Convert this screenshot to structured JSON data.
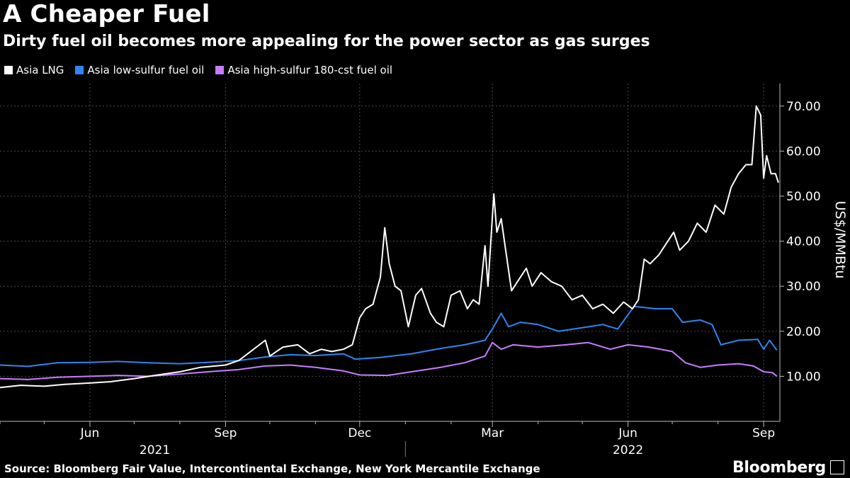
{
  "title": "A Cheaper Fuel",
  "subtitle": "Dirty fuel oil becomes more appealing for the power sector as gas surges",
  "source": "Source: Bloomberg Fair Value, Intercontinental Exchange, New York Mercantile Exchange",
  "brand": "Bloomberg",
  "colors": {
    "lng": "#ffffff",
    "lsfo": "#2e86f0",
    "hsfo": "#c77dff",
    "background": "#000000",
    "grid": "#555555"
  },
  "chart_data": {
    "type": "line",
    "ylabel": "US$/MMBtu",
    "ylim": [
      0,
      75
    ],
    "yticks": [
      "10.00",
      "20.00",
      "30.00",
      "40.00",
      "50.00",
      "60.00",
      "70.00"
    ],
    "ytick_values": [
      10,
      20,
      30,
      40,
      50,
      60,
      70
    ],
    "x_month_ticks": [
      "Jun",
      "Sep",
      "Dec",
      "Mar",
      "Jun",
      "Sep"
    ],
    "x_tick_dates": [
      "2021-06-01",
      "2021-09-01",
      "2021-12-01",
      "2022-03-01",
      "2022-06-01",
      "2022-09-01"
    ],
    "x_minor_tick_dates": [
      "2021-04-01",
      "2021-05-01",
      "2021-07-01",
      "2021-08-01",
      "2021-10-01",
      "2021-11-01",
      "2022-01-01",
      "2022-02-01",
      "2022-04-01",
      "2022-05-01",
      "2022-07-01",
      "2022-08-01"
    ],
    "x_year_labels": [
      "2021",
      "2022"
    ],
    "x_year_label_dates": [
      "2021-07-15",
      "2022-06-01"
    ],
    "xlim": [
      "2021-04-01",
      "2022-09-12"
    ],
    "grid": true,
    "legend_position": "top-left",
    "series": [
      {
        "name": "Asia LNG",
        "color": "#ffffff",
        "points": [
          [
            "2021-04-01",
            7.5
          ],
          [
            "2021-04-15",
            8.0
          ],
          [
            "2021-05-01",
            7.8
          ],
          [
            "2021-05-15",
            8.2
          ],
          [
            "2021-06-01",
            8.5
          ],
          [
            "2021-06-15",
            8.8
          ],
          [
            "2021-07-01",
            9.5
          ],
          [
            "2021-07-15",
            10.2
          ],
          [
            "2021-08-01",
            11.0
          ],
          [
            "2021-08-15",
            12.0
          ],
          [
            "2021-09-01",
            12.5
          ],
          [
            "2021-09-10",
            13.5
          ],
          [
            "2021-09-20",
            16.0
          ],
          [
            "2021-09-28",
            18.0
          ],
          [
            "2021-10-01",
            14.5
          ],
          [
            "2021-10-10",
            16.5
          ],
          [
            "2021-10-20",
            17.0
          ],
          [
            "2021-10-28",
            15.0
          ],
          [
            "2021-11-05",
            16.0
          ],
          [
            "2021-11-12",
            15.5
          ],
          [
            "2021-11-20",
            16.0
          ],
          [
            "2021-11-26",
            17.0
          ],
          [
            "2021-12-01",
            23.0
          ],
          [
            "2021-12-05",
            25.0
          ],
          [
            "2021-12-10",
            26.0
          ],
          [
            "2021-12-15",
            32.0
          ],
          [
            "2021-12-18",
            43.0
          ],
          [
            "2021-12-21",
            35.0
          ],
          [
            "2021-12-25",
            30.0
          ],
          [
            "2021-12-29",
            29.0
          ],
          [
            "2022-01-03",
            21.0
          ],
          [
            "2022-01-08",
            28.0
          ],
          [
            "2022-01-12",
            29.5
          ],
          [
            "2022-01-18",
            24.0
          ],
          [
            "2022-01-22",
            22.0
          ],
          [
            "2022-01-27",
            21.0
          ],
          [
            "2022-02-01",
            28.0
          ],
          [
            "2022-02-07",
            29.0
          ],
          [
            "2022-02-12",
            25.0
          ],
          [
            "2022-02-16",
            27.0
          ],
          [
            "2022-02-20",
            26.0
          ],
          [
            "2022-02-24",
            39.0
          ],
          [
            "2022-02-26",
            30.0
          ],
          [
            "2022-03-02",
            50.5
          ],
          [
            "2022-03-04",
            42.0
          ],
          [
            "2022-03-07",
            45.0
          ],
          [
            "2022-03-10",
            38.0
          ],
          [
            "2022-03-14",
            29.0
          ],
          [
            "2022-03-18",
            31.0
          ],
          [
            "2022-03-24",
            34.0
          ],
          [
            "2022-03-28",
            30.0
          ],
          [
            "2022-04-03",
            33.0
          ],
          [
            "2022-04-10",
            31.0
          ],
          [
            "2022-04-17",
            30.0
          ],
          [
            "2022-04-24",
            27.0
          ],
          [
            "2022-05-01",
            28.0
          ],
          [
            "2022-05-08",
            25.0
          ],
          [
            "2022-05-15",
            26.0
          ],
          [
            "2022-05-22",
            24.0
          ],
          [
            "2022-05-29",
            26.5
          ],
          [
            "2022-06-04",
            25.0
          ],
          [
            "2022-06-08",
            27.0
          ],
          [
            "2022-06-12",
            36.0
          ],
          [
            "2022-06-16",
            35.0
          ],
          [
            "2022-06-22",
            37.0
          ],
          [
            "2022-06-28",
            40.0
          ],
          [
            "2022-07-02",
            42.0
          ],
          [
            "2022-07-06",
            38.0
          ],
          [
            "2022-07-12",
            40.0
          ],
          [
            "2022-07-18",
            44.0
          ],
          [
            "2022-07-24",
            42.0
          ],
          [
            "2022-07-30",
            48.0
          ],
          [
            "2022-08-05",
            46.0
          ],
          [
            "2022-08-10",
            52.0
          ],
          [
            "2022-08-15",
            55.0
          ],
          [
            "2022-08-20",
            57.0
          ],
          [
            "2022-08-24",
            57.0
          ],
          [
            "2022-08-27",
            70.0
          ],
          [
            "2022-08-30",
            68.0
          ],
          [
            "2022-09-01",
            54.0
          ],
          [
            "2022-09-03",
            59.0
          ],
          [
            "2022-09-06",
            55.0
          ],
          [
            "2022-09-09",
            55.0
          ],
          [
            "2022-09-11",
            53.0
          ]
        ]
      },
      {
        "name": "Asia low-sulfur fuel oil",
        "color": "#2e86f0",
        "points": [
          [
            "2021-04-01",
            12.5
          ],
          [
            "2021-04-20",
            12.2
          ],
          [
            "2021-05-10",
            13.0
          ],
          [
            "2021-06-01",
            13.1
          ],
          [
            "2021-06-20",
            13.3
          ],
          [
            "2021-07-10",
            13.0
          ],
          [
            "2021-08-01",
            12.8
          ],
          [
            "2021-08-20",
            13.1
          ],
          [
            "2021-09-10",
            13.5
          ],
          [
            "2021-09-28",
            14.3
          ],
          [
            "2021-10-15",
            14.8
          ],
          [
            "2021-11-01",
            14.6
          ],
          [
            "2021-11-20",
            15.0
          ],
          [
            "2021-11-28",
            13.8
          ],
          [
            "2021-12-15",
            14.2
          ],
          [
            "2022-01-05",
            15.0
          ],
          [
            "2022-01-25",
            16.2
          ],
          [
            "2022-02-10",
            17.0
          ],
          [
            "2022-02-24",
            18.0
          ],
          [
            "2022-03-01",
            20.5
          ],
          [
            "2022-03-07",
            24.0
          ],
          [
            "2022-03-12",
            21.0
          ],
          [
            "2022-03-20",
            22.0
          ],
          [
            "2022-04-01",
            21.5
          ],
          [
            "2022-04-15",
            20.0
          ],
          [
            "2022-05-01",
            20.8
          ],
          [
            "2022-05-15",
            21.5
          ],
          [
            "2022-05-25",
            20.5
          ],
          [
            "2022-06-05",
            25.5
          ],
          [
            "2022-06-20",
            25.0
          ],
          [
            "2022-07-01",
            25.0
          ],
          [
            "2022-07-08",
            22.0
          ],
          [
            "2022-07-20",
            22.5
          ],
          [
            "2022-07-28",
            21.5
          ],
          [
            "2022-08-03",
            17.0
          ],
          [
            "2022-08-15",
            18.0
          ],
          [
            "2022-08-28",
            18.2
          ],
          [
            "2022-09-01",
            16.0
          ],
          [
            "2022-09-05",
            18.0
          ],
          [
            "2022-09-10",
            15.8
          ]
        ]
      },
      {
        "name": "Asia high-sulfur 180-cst fuel oil",
        "color": "#c77dff",
        "points": [
          [
            "2021-04-01",
            9.5
          ],
          [
            "2021-04-20",
            9.3
          ],
          [
            "2021-05-10",
            9.8
          ],
          [
            "2021-06-01",
            10.0
          ],
          [
            "2021-06-20",
            10.2
          ],
          [
            "2021-07-10",
            10.0
          ],
          [
            "2021-08-01",
            10.5
          ],
          [
            "2021-08-20",
            11.0
          ],
          [
            "2021-09-10",
            11.5
          ],
          [
            "2021-09-28",
            12.3
          ],
          [
            "2021-10-15",
            12.5
          ],
          [
            "2021-11-01",
            12.0
          ],
          [
            "2021-11-20",
            11.2
          ],
          [
            "2021-12-01",
            10.3
          ],
          [
            "2021-12-20",
            10.2
          ],
          [
            "2022-01-05",
            11.0
          ],
          [
            "2022-01-25",
            12.0
          ],
          [
            "2022-02-10",
            13.0
          ],
          [
            "2022-02-24",
            14.5
          ],
          [
            "2022-03-01",
            17.5
          ],
          [
            "2022-03-07",
            16.0
          ],
          [
            "2022-03-15",
            17.0
          ],
          [
            "2022-04-01",
            16.5
          ],
          [
            "2022-04-20",
            17.0
          ],
          [
            "2022-05-05",
            17.5
          ],
          [
            "2022-05-20",
            16.0
          ],
          [
            "2022-06-01",
            17.0
          ],
          [
            "2022-06-15",
            16.5
          ],
          [
            "2022-07-01",
            15.5
          ],
          [
            "2022-07-10",
            13.0
          ],
          [
            "2022-07-20",
            12.0
          ],
          [
            "2022-08-01",
            12.5
          ],
          [
            "2022-08-15",
            12.8
          ],
          [
            "2022-08-25",
            12.3
          ],
          [
            "2022-09-01",
            11.0
          ],
          [
            "2022-09-07",
            10.8
          ],
          [
            "2022-09-10",
            10.0
          ]
        ]
      }
    ]
  }
}
